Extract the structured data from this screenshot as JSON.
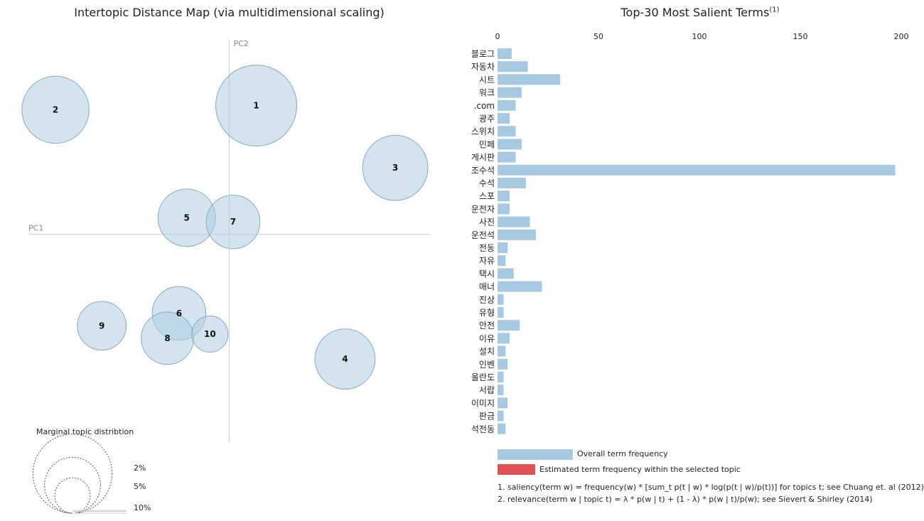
{
  "left_title": "Intertopic Distance Map (via multidimensional scaling)",
  "right_title": "Top-30 Most Salient Terms",
  "right_title_sup": "(1)",
  "colors": {
    "topic_fill": "#aecde1",
    "topic_stroke": "#8aa8bd",
    "bar_overall": "#a6c8e0",
    "bar_selected": "#e05252",
    "axis": "#cccccc"
  },
  "chart_data": [
    {
      "type": "scatter",
      "title": "Intertopic Distance Map (via multidimensional scaling)",
      "xlabel": "PC1",
      "ylabel": "PC2",
      "topics": [
        {
          "id": "1",
          "pc1": 0.07,
          "pc2": 0.31,
          "size_pct": 10.5
        },
        {
          "id": "2",
          "pc1": -0.45,
          "pc2": 0.3,
          "size_pct": 7.2
        },
        {
          "id": "3",
          "pc1": 0.43,
          "pc2": 0.16,
          "size_pct": 6.8
        },
        {
          "id": "4",
          "pc1": 0.3,
          "pc2": -0.3,
          "size_pct": 5.8
        },
        {
          "id": "5",
          "pc1": -0.11,
          "pc2": 0.04,
          "size_pct": 5.3
        },
        {
          "id": "6",
          "pc1": -0.13,
          "pc2": -0.19,
          "size_pct": 4.6
        },
        {
          "id": "7",
          "pc1": 0.01,
          "pc2": 0.03,
          "size_pct": 4.6
        },
        {
          "id": "8",
          "pc1": -0.16,
          "pc2": -0.25,
          "size_pct": 4.4
        },
        {
          "id": "9",
          "pc1": -0.33,
          "pc2": -0.22,
          "size_pct": 3.8
        },
        {
          "id": "10",
          "pc1": -0.05,
          "pc2": -0.24,
          "size_pct": 2.1
        }
      ],
      "xlim": [
        -0.52,
        0.52
      ],
      "ylim": [
        -0.5,
        0.47
      ],
      "marginal_title": "Marginal topic distribtion",
      "marginal_legend": [
        {
          "label": "2%",
          "pct": 2
        },
        {
          "label": "5%",
          "pct": 5
        },
        {
          "label": "10%",
          "pct": 10
        }
      ]
    },
    {
      "type": "bar",
      "orientation": "horizontal",
      "title": "Top-30 Most Salient Terms",
      "xlim": [
        0,
        200
      ],
      "xticks": [
        0,
        50,
        100,
        150,
        200
      ],
      "categories": [
        "블로그",
        "자동차",
        "시트",
        "워크",
        ".com",
        "광주",
        "스위치",
        "민페",
        "게시판",
        "조수석",
        "수석",
        "스포",
        "운전자",
        "사진",
        "운전석",
        "전동",
        "자유",
        "택시",
        "매너",
        "진상",
        "유형",
        "안전",
        "이유",
        "설치",
        "인벤",
        "울란도",
        "서랍",
        "이미지",
        "판금",
        "석전동"
      ],
      "series": [
        {
          "name": "Overall term frequency",
          "values": [
            7,
            15,
            31,
            12,
            9,
            6,
            9,
            12,
            9,
            197,
            14,
            6,
            6,
            16,
            19,
            5,
            4,
            8,
            22,
            3,
            3,
            11,
            6,
            4,
            5,
            3,
            3,
            5,
            3,
            4
          ]
        }
      ],
      "legend": [
        "Overall term frequency",
        "Estimated term frequency within the selected topic"
      ]
    }
  ],
  "notes": [
    "1. saliency(term w) = frequency(w) * [sum_t p(t | w) * log(p(t | w)/p(t))] for topics t; see Chuang et. al (2012)",
    "2. relevance(term w | topic t) = λ * p(w | t) + (1 - λ) * p(w | t)/p(w); see Sievert & Shirley (2014)"
  ]
}
